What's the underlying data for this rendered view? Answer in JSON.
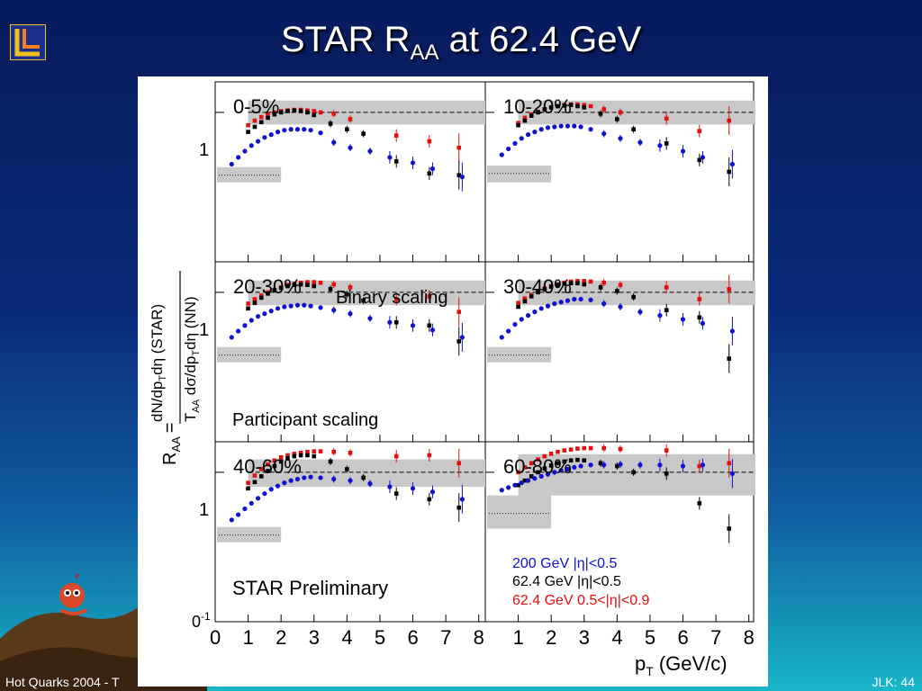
{
  "slide": {
    "title_main": "STAR R",
    "title_sub": "AA",
    "title_rest": " at 62.4 GeV",
    "footer_left": "Hot Quarks 2004 - T",
    "footer_right": "JLK: 44"
  },
  "colors": {
    "series_200": "#1010d0",
    "series_624_mid": "#000000",
    "series_624_fwd": "#e01010",
    "band": "#c8c8c8"
  },
  "chart_data": {
    "type": "scatter",
    "ylabel_line1": "dN/dp",
    "ylabel_num_sub": "T",
    "ylabel_num_rest": "dη (STAR)",
    "ylabel_den_1": "T",
    "ylabel_den_sub1": "AA",
    "ylabel_den_2": " dσ/dp",
    "ylabel_den_sub2": "T",
    "ylabel_den_3": "dη (NN)",
    "ylabel_raa": "R",
    "ylabel_raa_sub": "AA",
    "ylabel_eq": "=",
    "xlabel_main": "p",
    "xlabel_sub": "T",
    "xlabel_unit": "(GeV/c)",
    "ytick_1": "1",
    "ytick_01_a": "0",
    "ytick_01_b": "-1",
    "xticks_left": [
      "0",
      "1",
      "2",
      "3",
      "4",
      "5",
      "6",
      "7",
      "8"
    ],
    "xticks_right": [
      "1",
      "2",
      "3",
      "4",
      "5",
      "6",
      "7",
      "8"
    ],
    "ylim": [
      0.1,
      1.6
    ],
    "yscale": "log",
    "xlim": [
      0,
      8.2
    ],
    "annotations": {
      "binary": "Binary scaling",
      "participant": "Participant scaling",
      "preliminary": "STAR Preliminary"
    },
    "legend": {
      "s200": "200 GeV |η|<0.5",
      "s624": "62.4 GeV |η|<0.5",
      "s624f": "62.4 GeV 0.5<|η|<0.9"
    },
    "panels": [
      {
        "label": "0-5%",
        "band": [
          0.83,
          1.2
        ],
        "part": [
          0.34,
          0.43
        ],
        "partline": 0.38,
        "s200": {
          "x": [
            0.5,
            0.7,
            0.9,
            1.1,
            1.3,
            1.5,
            1.7,
            1.9,
            2.1,
            2.3,
            2.5,
            2.7,
            2.9,
            3.2,
            3.6,
            4.1,
            4.7,
            5.3,
            6.0,
            6.6,
            7.5
          ],
          "y": [
            0.45,
            0.5,
            0.55,
            0.6,
            0.64,
            0.68,
            0.71,
            0.74,
            0.76,
            0.77,
            0.77,
            0.77,
            0.76,
            0.73,
            0.63,
            0.58,
            0.55,
            0.5,
            0.46,
            0.42,
            0.37
          ]
        },
        "s624": {
          "x": [
            1.0,
            1.2,
            1.4,
            1.6,
            1.8,
            2.0,
            2.2,
            2.4,
            2.6,
            2.8,
            3.0,
            3.5,
            4.0,
            4.5,
            5.5,
            6.5,
            7.4
          ],
          "y": [
            0.74,
            0.8,
            0.86,
            0.92,
            0.97,
            1.0,
            1.02,
            1.03,
            1.02,
            1.0,
            0.96,
            0.84,
            0.77,
            0.72,
            0.47,
            0.39,
            0.38
          ]
        },
        "s624f": {
          "x": [
            1.0,
            1.2,
            1.4,
            1.6,
            1.8,
            2.0,
            2.2,
            2.4,
            2.6,
            2.8,
            3.0,
            3.2,
            3.6,
            4.1,
            5.5,
            6.5,
            7.4
          ],
          "y": [
            0.82,
            0.88,
            0.93,
            0.98,
            1.0,
            1.02,
            1.03,
            1.04,
            1.04,
            1.03,
            1.02,
            1.0,
            0.98,
            0.9,
            0.7,
            0.64,
            0.58
          ]
        }
      },
      {
        "label": "10-20%",
        "band": [
          0.83,
          1.2
        ],
        "part": [
          0.34,
          0.44
        ],
        "partline": 0.39,
        "s200": {
          "x": [
            0.5,
            0.7,
            0.9,
            1.1,
            1.3,
            1.5,
            1.7,
            1.9,
            2.1,
            2.3,
            2.5,
            2.7,
            2.9,
            3.2,
            3.6,
            4.1,
            4.7,
            5.3,
            6.0,
            6.6,
            7.5
          ],
          "y": [
            0.52,
            0.57,
            0.62,
            0.67,
            0.71,
            0.74,
            0.77,
            0.79,
            0.8,
            0.81,
            0.81,
            0.81,
            0.8,
            0.77,
            0.72,
            0.67,
            0.63,
            0.6,
            0.55,
            0.5,
            0.45
          ]
        },
        "s624": {
          "x": [
            1.0,
            1.2,
            1.4,
            1.6,
            1.8,
            2.0,
            2.2,
            2.4,
            2.6,
            2.8,
            3.0,
            3.5,
            4.0,
            4.5,
            5.5,
            6.5,
            7.4
          ],
          "y": [
            0.82,
            0.88,
            0.95,
            1.0,
            1.05,
            1.08,
            1.1,
            1.11,
            1.12,
            1.1,
            1.08,
            0.98,
            0.9,
            0.77,
            0.62,
            0.48,
            0.4
          ]
        },
        "s624f": {
          "x": [
            1.0,
            1.2,
            1.4,
            1.6,
            1.8,
            2.0,
            2.2,
            2.4,
            2.6,
            2.8,
            3.0,
            3.2,
            3.6,
            4.1,
            5.5,
            6.5,
            7.4
          ],
          "y": [
            0.85,
            0.92,
            0.97,
            1.01,
            1.05,
            1.08,
            1.1,
            1.12,
            1.13,
            1.13,
            1.12,
            1.1,
            1.05,
            1.0,
            0.91,
            0.75,
            0.88
          ]
        }
      },
      {
        "label": "20-30%",
        "band": [
          0.82,
          1.2
        ],
        "part": [
          0.34,
          0.43
        ],
        "partline": 0.38,
        "s200": {
          "x": [
            0.5,
            0.7,
            0.9,
            1.1,
            1.3,
            1.5,
            1.7,
            1.9,
            2.1,
            2.3,
            2.5,
            2.7,
            2.9,
            3.2,
            3.6,
            4.1,
            4.7,
            5.3,
            6.0,
            6.6,
            7.5
          ],
          "y": [
            0.5,
            0.55,
            0.6,
            0.65,
            0.69,
            0.72,
            0.75,
            0.78,
            0.8,
            0.81,
            0.82,
            0.82,
            0.81,
            0.79,
            0.76,
            0.72,
            0.67,
            0.63,
            0.6,
            0.56,
            0.5
          ]
        },
        "s624": {
          "x": [
            1.0,
            1.2,
            1.4,
            1.6,
            1.8,
            2.0,
            2.2,
            2.4,
            2.6,
            2.8,
            3.0,
            3.5,
            4.0,
            4.5,
            5.5,
            6.5,
            7.4
          ],
          "y": [
            0.78,
            0.85,
            0.92,
            0.98,
            1.03,
            1.07,
            1.1,
            1.12,
            1.13,
            1.12,
            1.1,
            1.05,
            0.97,
            0.88,
            0.63,
            0.6,
            0.47
          ]
        },
        "s624f": {
          "x": [
            1.0,
            1.2,
            1.4,
            1.6,
            1.8,
            2.0,
            2.2,
            2.4,
            2.6,
            2.8,
            3.0,
            3.2,
            3.6,
            4.1,
            5.5,
            6.5,
            7.4
          ],
          "y": [
            0.84,
            0.9,
            0.95,
            1.0,
            1.04,
            1.08,
            1.12,
            1.14,
            1.16,
            1.17,
            1.17,
            1.16,
            1.13,
            1.08,
            0.9,
            0.94,
            0.74
          ]
        }
      },
      {
        "label": "30-40%",
        "band": [
          0.82,
          1.2
        ],
        "part": [
          0.34,
          0.43
        ],
        "partline": 0.38,
        "s200": {
          "x": [
            0.5,
            0.7,
            0.9,
            1.1,
            1.3,
            1.5,
            1.7,
            1.9,
            2.1,
            2.3,
            2.5,
            2.7,
            2.9,
            3.2,
            3.6,
            4.1,
            4.7,
            5.3,
            6.0,
            6.6,
            7.5
          ],
          "y": [
            0.5,
            0.55,
            0.61,
            0.66,
            0.7,
            0.74,
            0.78,
            0.81,
            0.84,
            0.86,
            0.88,
            0.9,
            0.9,
            0.89,
            0.84,
            0.8,
            0.74,
            0.7,
            0.66,
            0.62,
            0.55
          ]
        },
        "s624": {
          "x": [
            1.0,
            1.2,
            1.4,
            1.6,
            1.8,
            2.0,
            2.2,
            2.4,
            2.6,
            2.8,
            3.0,
            3.5,
            4.0,
            4.5,
            5.5,
            6.5,
            7.4
          ],
          "y": [
            0.8,
            0.87,
            0.94,
            1.0,
            1.05,
            1.09,
            1.12,
            1.14,
            1.15,
            1.15,
            1.13,
            1.08,
            1.02,
            0.93,
            0.76,
            0.68,
            0.36
          ]
        },
        "s624f": {
          "x": [
            1.0,
            1.2,
            1.4,
            1.6,
            1.8,
            2.0,
            2.2,
            2.4,
            2.6,
            2.8,
            3.0,
            3.2,
            3.6,
            4.1,
            5.5,
            6.5,
            7.4
          ],
          "y": [
            0.85,
            0.91,
            0.96,
            1.01,
            1.06,
            1.1,
            1.13,
            1.16,
            1.18,
            1.19,
            1.19,
            1.18,
            1.16,
            1.12,
            1.08,
            0.9,
            1.05
          ]
        }
      },
      {
        "label": "40-60%",
        "band": [
          0.8,
          1.22
        ],
        "part": [
          0.34,
          0.43
        ],
        "partline": 0.38,
        "s200": {
          "x": [
            0.5,
            0.7,
            0.9,
            1.1,
            1.3,
            1.5,
            1.7,
            1.9,
            2.1,
            2.3,
            2.5,
            2.7,
            2.9,
            3.2,
            3.6,
            4.1,
            4.7,
            5.3,
            6.0,
            6.6,
            7.5
          ],
          "y": [
            0.48,
            0.52,
            0.57,
            0.62,
            0.67,
            0.72,
            0.77,
            0.81,
            0.85,
            0.88,
            0.9,
            0.92,
            0.93,
            0.92,
            0.9,
            0.88,
            0.84,
            0.8,
            0.78,
            0.74,
            0.66
          ]
        },
        "s624": {
          "x": [
            1.0,
            1.2,
            1.4,
            1.6,
            1.8,
            2.0,
            2.2,
            2.4,
            2.6,
            2.8,
            3.0,
            3.5,
            4.0,
            4.5,
            5.5,
            6.5,
            7.4
          ],
          "y": [
            0.78,
            0.86,
            0.94,
            1.02,
            1.1,
            1.18,
            1.24,
            1.28,
            1.3,
            1.3,
            1.28,
            1.18,
            1.05,
            0.92,
            0.72,
            0.66,
            0.58
          ]
        },
        "s624f": {
          "x": [
            1.0,
            1.2,
            1.4,
            1.6,
            1.8,
            2.0,
            2.2,
            2.4,
            2.6,
            2.8,
            3.0,
            3.2,
            3.6,
            4.1,
            5.5,
            6.5,
            7.4
          ],
          "y": [
            0.85,
            0.95,
            1.05,
            1.13,
            1.2,
            1.26,
            1.3,
            1.33,
            1.35,
            1.37,
            1.38,
            1.38,
            1.37,
            1.35,
            1.28,
            1.3,
            1.15
          ]
        }
      },
      {
        "label": "60-80%",
        "band": [
          0.7,
          1.32
        ],
        "part": [
          0.42,
          0.7
        ],
        "partline": 0.53,
        "s200": {
          "x": [
            0.5,
            0.7,
            0.9,
            1.1,
            1.3,
            1.5,
            1.7,
            1.9,
            2.1,
            2.3,
            2.5,
            2.7,
            2.9,
            3.2,
            3.6,
            4.1,
            4.7,
            5.3,
            6.0,
            6.6,
            7.5
          ],
          "y": [
            0.76,
            0.79,
            0.82,
            0.85,
            0.88,
            0.91,
            0.94,
            0.97,
            1.0,
            1.03,
            1.05,
            1.08,
            1.1,
            1.12,
            1.12,
            1.13,
            1.12,
            1.12,
            1.1,
            1.12,
            0.98
          ]
        },
        "s624": {
          "x": [
            1.0,
            1.2,
            1.4,
            1.6,
            1.8,
            2.0,
            2.2,
            2.4,
            2.6,
            2.8,
            3.0,
            3.5,
            4.0,
            4.5,
            5.5,
            6.5,
            7.4
          ],
          "y": [
            0.82,
            0.88,
            0.94,
            1.0,
            1.06,
            1.11,
            1.15,
            1.18,
            1.2,
            1.21,
            1.2,
            1.15,
            1.1,
            1.0,
            0.98,
            0.62,
            0.42
          ]
        },
        "s624f": {
          "x": [
            1.0,
            1.2,
            1.4,
            1.6,
            1.8,
            2.0,
            2.2,
            2.4,
            2.6,
            2.8,
            3.0,
            3.2,
            3.6,
            4.1,
            5.5,
            6.5,
            7.4
          ],
          "y": [
            1.0,
            1.08,
            1.15,
            1.22,
            1.28,
            1.33,
            1.37,
            1.4,
            1.42,
            1.44,
            1.45,
            1.45,
            1.45,
            1.43,
            1.4,
            1.1,
            1.15
          ]
        }
      }
    ]
  }
}
